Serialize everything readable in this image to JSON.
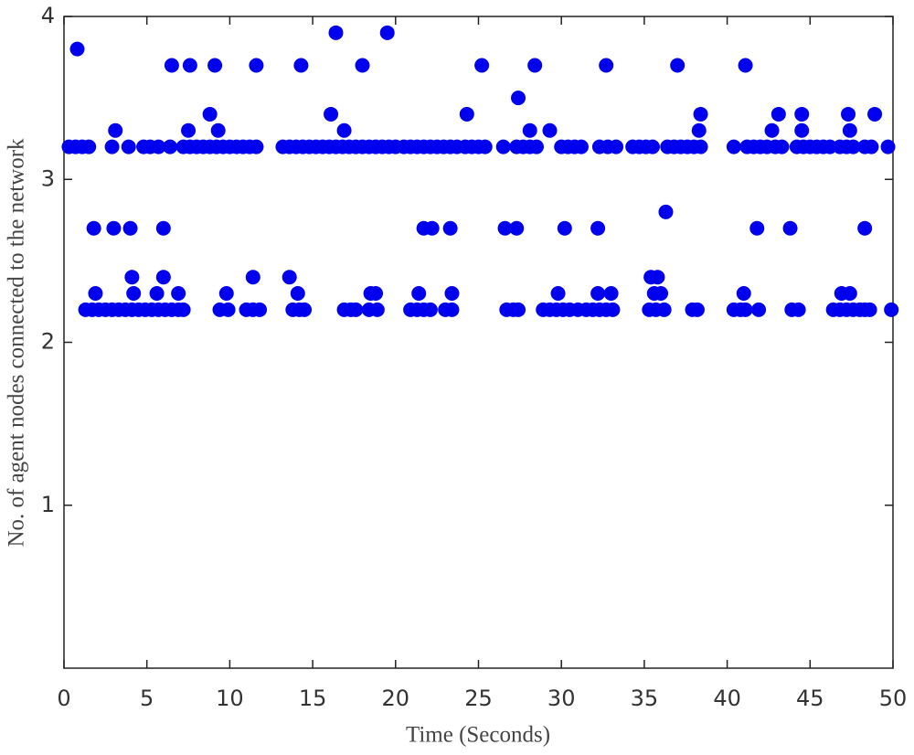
{
  "chart_data": {
    "type": "scatter",
    "xlabel": "Time (Seconds)",
    "ylabel": "No. of agent nodes connected to the network",
    "xlim": [
      0,
      50
    ],
    "xticks": [
      0,
      5,
      10,
      15,
      20,
      25,
      30,
      35,
      40,
      45,
      50
    ],
    "ylim": [
      0,
      4
    ],
    "yticks": [
      1,
      2,
      3,
      4
    ],
    "series": [
      {
        "color": "#0000ee",
        "x": [
          16.4,
          19.5
        ],
        "values": [
          3.9,
          3.9
        ]
      },
      {
        "color": "#0000ee",
        "x": [
          0.8
        ],
        "values": [
          3.8
        ]
      },
      {
        "color": "#0000ee",
        "x": [
          6.5,
          7.6,
          9.1,
          11.6,
          14.3,
          18.0,
          25.2,
          28.4,
          32.7,
          37.0,
          41.1
        ],
        "values": [
          3.7,
          3.7,
          3.7,
          3.7,
          3.7,
          3.7,
          3.7,
          3.7,
          3.7,
          3.7,
          3.7
        ]
      },
      {
        "color": "#0000ee",
        "x": [
          27.4
        ],
        "values": [
          3.5
        ]
      },
      {
        "color": "#0000ee",
        "x": [
          8.8,
          16.1,
          24.3,
          38.4,
          43.1,
          44.5,
          47.3,
          48.9
        ],
        "values": [
          3.4,
          3.4,
          3.4,
          3.4,
          3.4,
          3.4,
          3.4,
          3.4
        ]
      },
      {
        "color": "#0000ee",
        "x": [
          3.1,
          7.5,
          9.3,
          16.9,
          28.1,
          29.3,
          38.3,
          42.7,
          44.5,
          47.4
        ],
        "values": [
          3.3,
          3.3,
          3.3,
          3.3,
          3.3,
          3.3,
          3.3,
          3.3,
          3.3,
          3.3
        ]
      },
      {
        "color": "#0000ee",
        "x": [
          0.3,
          0.7,
          1.1,
          1.5,
          2.9,
          3.9,
          4.8,
          5.2,
          5.7,
          6.4,
          7.2,
          7.6,
          8.0,
          8.4,
          8.8,
          9.2,
          9.6,
          10.0,
          10.4,
          10.8,
          11.2,
          11.6,
          13.2,
          13.6,
          14.0,
          14.4,
          14.8,
          15.2,
          15.6,
          16.0,
          16.4,
          16.8,
          17.2,
          17.6,
          18.0,
          18.4,
          18.8,
          19.2,
          19.6,
          20.0,
          20.5,
          20.9,
          21.3,
          21.7,
          22.1,
          22.5,
          22.9,
          23.3,
          23.7,
          24.2,
          24.6,
          25.0,
          25.4,
          26.5,
          27.3,
          27.7,
          28.1,
          28.5,
          30.0,
          30.4,
          30.8,
          31.2,
          32.3,
          32.8,
          33.3,
          34.3,
          34.7,
          35.1,
          35.5,
          36.4,
          36.8,
          37.2,
          37.6,
          38.0,
          38.4,
          40.4,
          41.2,
          41.6,
          42.0,
          42.4,
          42.9,
          43.3,
          44.2,
          44.6,
          45.0,
          45.4,
          45.8,
          46.2,
          46.8,
          47.2,
          47.6,
          48.3,
          48.7,
          49.7
        ],
        "values": [
          3.2,
          3.2,
          3.2,
          3.2,
          3.2,
          3.2,
          3.2,
          3.2,
          3.2,
          3.2,
          3.2,
          3.2,
          3.2,
          3.2,
          3.2,
          3.2,
          3.2,
          3.2,
          3.2,
          3.2,
          3.2,
          3.2,
          3.2,
          3.2,
          3.2,
          3.2,
          3.2,
          3.2,
          3.2,
          3.2,
          3.2,
          3.2,
          3.2,
          3.2,
          3.2,
          3.2,
          3.2,
          3.2,
          3.2,
          3.2,
          3.2,
          3.2,
          3.2,
          3.2,
          3.2,
          3.2,
          3.2,
          3.2,
          3.2,
          3.2,
          3.2,
          3.2,
          3.2,
          3.2,
          3.2,
          3.2,
          3.2,
          3.2,
          3.2,
          3.2,
          3.2,
          3.2,
          3.2,
          3.2,
          3.2,
          3.2,
          3.2,
          3.2,
          3.2,
          3.2,
          3.2,
          3.2,
          3.2,
          3.2,
          3.2,
          3.2,
          3.2,
          3.2,
          3.2,
          3.2,
          3.2,
          3.2,
          3.2,
          3.2,
          3.2,
          3.2,
          3.2,
          3.2,
          3.2,
          3.2,
          3.2,
          3.2,
          3.2,
          3.2
        ]
      },
      {
        "color": "#0000ee",
        "x": [
          36.3
        ],
        "values": [
          2.8
        ]
      },
      {
        "color": "#0000ee",
        "x": [
          1.8,
          3.0,
          4.0,
          6.0,
          21.7,
          22.2,
          23.3,
          26.6,
          27.3,
          30.2,
          32.2,
          41.8,
          43.8,
          48.3
        ],
        "values": [
          2.7,
          2.7,
          2.7,
          2.7,
          2.7,
          2.7,
          2.7,
          2.7,
          2.7,
          2.7,
          2.7,
          2.7,
          2.7,
          2.7
        ]
      },
      {
        "color": "#0000ee",
        "x": [
          4.1,
          6.0,
          11.4,
          13.6,
          35.4,
          35.8
        ],
        "values": [
          2.4,
          2.4,
          2.4,
          2.4,
          2.4,
          2.4
        ]
      },
      {
        "color": "#0000ee",
        "x": [
          1.9,
          4.2,
          5.6,
          6.9,
          9.8,
          14.1,
          18.5,
          18.8,
          21.4,
          23.4,
          29.8,
          32.2,
          33.0,
          35.6,
          36.0,
          41.0,
          46.9,
          47.4
        ],
        "values": [
          2.3,
          2.3,
          2.3,
          2.3,
          2.3,
          2.3,
          2.3,
          2.3,
          2.3,
          2.3,
          2.3,
          2.3,
          2.3,
          2.3,
          2.3,
          2.3,
          2.3,
          2.3
        ]
      },
      {
        "color": "#0000ee",
        "x": [
          1.3,
          1.7,
          2.1,
          2.5,
          2.9,
          3.3,
          3.7,
          4.1,
          4.5,
          4.9,
          5.3,
          5.7,
          6.1,
          6.5,
          6.9,
          7.2,
          9.4,
          9.9,
          11.0,
          11.4,
          11.8,
          13.8,
          14.2,
          14.5,
          16.9,
          17.3,
          17.6,
          18.4,
          18.9,
          20.9,
          21.3,
          21.7,
          22.1,
          23.0,
          23.4,
          26.7,
          27.1,
          27.4,
          28.9,
          29.3,
          29.7,
          30.1,
          30.5,
          31.0,
          31.5,
          31.9,
          32.3,
          32.7,
          33.1,
          35.3,
          35.7,
          36.2,
          37.9,
          38.2,
          40.4,
          40.8,
          41.1,
          41.9,
          43.9,
          44.3,
          46.4,
          46.8,
          47.2,
          47.6,
          48.0,
          48.3,
          48.6,
          49.9
        ],
        "values": [
          2.2,
          2.2,
          2.2,
          2.2,
          2.2,
          2.2,
          2.2,
          2.2,
          2.2,
          2.2,
          2.2,
          2.2,
          2.2,
          2.2,
          2.2,
          2.2,
          2.2,
          2.2,
          2.2,
          2.2,
          2.2,
          2.2,
          2.2,
          2.2,
          2.2,
          2.2,
          2.2,
          2.2,
          2.2,
          2.2,
          2.2,
          2.2,
          2.2,
          2.2,
          2.2,
          2.2,
          2.2,
          2.2,
          2.2,
          2.2,
          2.2,
          2.2,
          2.2,
          2.2,
          2.2,
          2.2,
          2.2,
          2.2,
          2.2,
          2.2,
          2.2,
          2.2,
          2.2,
          2.2,
          2.2,
          2.2,
          2.2,
          2.2,
          2.2,
          2.2,
          2.2,
          2.2,
          2.2,
          2.2,
          2.2,
          2.2,
          2.2,
          2.2
        ]
      }
    ]
  }
}
